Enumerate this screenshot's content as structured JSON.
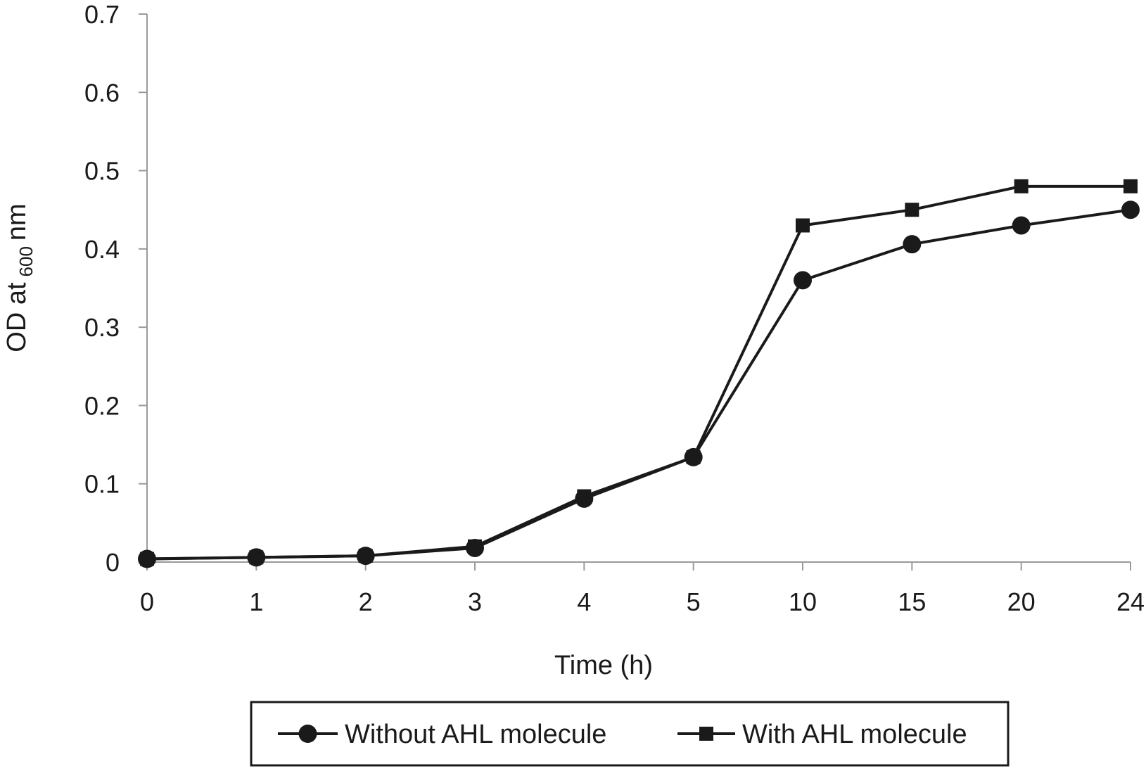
{
  "chart_data": {
    "type": "line",
    "categories": [
      "0",
      "1",
      "2",
      "3",
      "4",
      "5",
      "10",
      "15",
      "20",
      "24"
    ],
    "series": [
      {
        "name": "Without AHL molecule",
        "marker": "circle",
        "values": [
          0.004,
          0.006,
          0.008,
          0.018,
          0.081,
          0.134,
          0.36,
          0.406,
          0.43,
          0.45
        ]
      },
      {
        "name": "With AHL molecule",
        "marker": "square",
        "values": [
          0.004,
          0.006,
          0.008,
          0.02,
          0.084,
          0.134,
          0.43,
          0.45,
          0.48,
          0.48
        ]
      }
    ],
    "xlabel": "Time (h)",
    "ylabel": {
      "prefix": "OD at",
      "subscript": "600",
      "suffix": "nm"
    },
    "ylim": [
      0,
      0.7
    ],
    "yticks": [
      "0",
      "0.1",
      "0.2",
      "0.3",
      "0.4",
      "0.5",
      "0.6",
      "0.7"
    ],
    "grid": false,
    "legend_position": "bottom",
    "colors": {
      "line": "#1a1a1a",
      "axis": "#9a9a9a",
      "legend_border": "#1a1a1a"
    }
  }
}
